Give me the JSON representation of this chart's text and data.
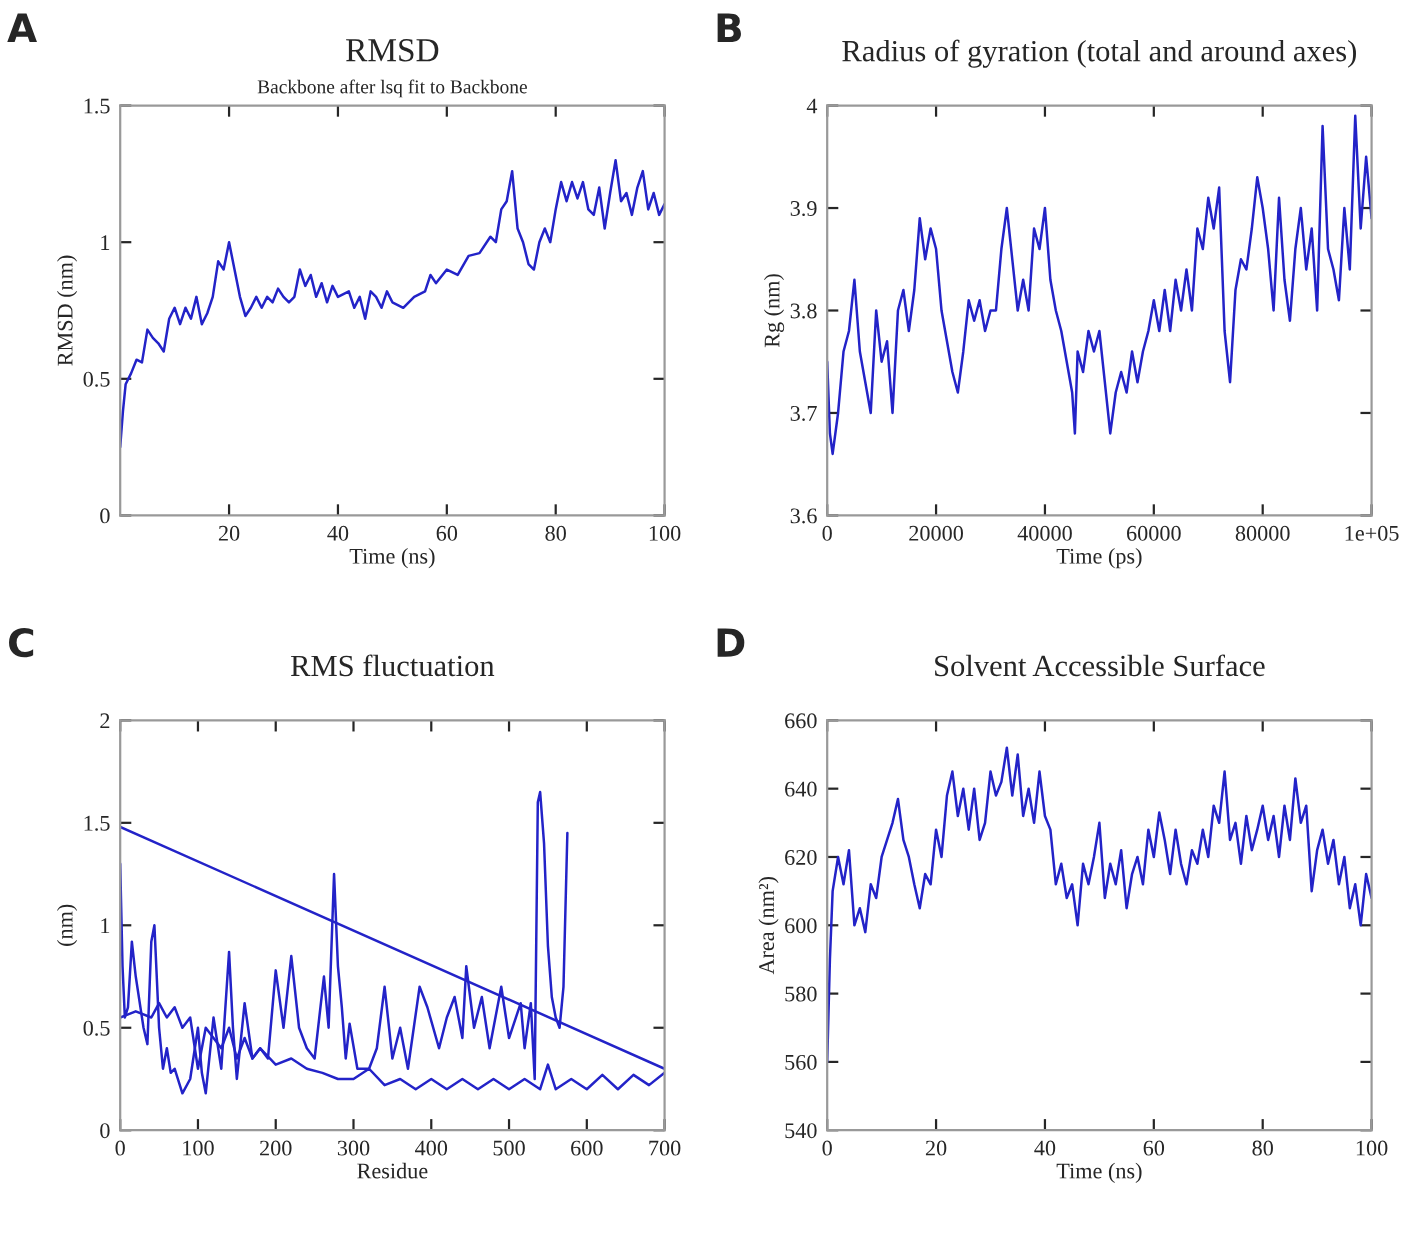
{
  "chart_data": [
    {
      "type": "line",
      "title": "RMSD",
      "subtitle": "Backbone after lsq fit to Backbone",
      "xlabel": "Time (ns)",
      "ylabel": "RMSD (nm)",
      "annotations": [
        "A"
      ],
      "xlim": [
        0,
        100
      ],
      "xticks": [
        20,
        40,
        60,
        80,
        100
      ],
      "ylim": [
        0,
        1.5
      ],
      "yticks": [
        0,
        0.5,
        1,
        1.5
      ],
      "grid": false,
      "series": [
        {
          "color": "#2323c8",
          "x": [
            0,
            0.5,
            1,
            2,
            3,
            4,
            5,
            6,
            7,
            8,
            9,
            10,
            11,
            12,
            13,
            14,
            15,
            16,
            17,
            18,
            19,
            20,
            21,
            22,
            23,
            24,
            25,
            26,
            27,
            28,
            29,
            30,
            31,
            32,
            33,
            34,
            35,
            36,
            37,
            38,
            39,
            40,
            42,
            43,
            44,
            45,
            46,
            47,
            48,
            49,
            50,
            52,
            54,
            56,
            57,
            58,
            60,
            62,
            64,
            66,
            68,
            69,
            70,
            71,
            72,
            73,
            74,
            75,
            76,
            77,
            78,
            79,
            80,
            81,
            82,
            83,
            84,
            85,
            86,
            87,
            88,
            89,
            90,
            91,
            92,
            93,
            94,
            95,
            96,
            97,
            98,
            99,
            100
          ],
          "values": [
            0.25,
            0.38,
            0.48,
            0.52,
            0.57,
            0.56,
            0.68,
            0.65,
            0.63,
            0.6,
            0.72,
            0.76,
            0.7,
            0.76,
            0.72,
            0.8,
            0.7,
            0.74,
            0.8,
            0.93,
            0.9,
            1.0,
            0.9,
            0.8,
            0.73,
            0.76,
            0.8,
            0.76,
            0.8,
            0.78,
            0.83,
            0.8,
            0.78,
            0.8,
            0.9,
            0.84,
            0.88,
            0.8,
            0.85,
            0.78,
            0.84,
            0.8,
            0.82,
            0.76,
            0.8,
            0.72,
            0.82,
            0.8,
            0.76,
            0.82,
            0.78,
            0.76,
            0.8,
            0.82,
            0.88,
            0.85,
            0.9,
            0.88,
            0.95,
            0.96,
            1.02,
            1.0,
            1.12,
            1.15,
            1.26,
            1.05,
            1.0,
            0.92,
            0.9,
            1.0,
            1.05,
            1.0,
            1.12,
            1.22,
            1.15,
            1.22,
            1.16,
            1.22,
            1.12,
            1.1,
            1.2,
            1.05,
            1.18,
            1.3,
            1.15,
            1.18,
            1.1,
            1.2,
            1.26,
            1.12,
            1.18,
            1.1,
            1.14
          ]
        }
      ]
    },
    {
      "type": "line",
      "title": "Radius of gyration (total and around axes)",
      "xlabel": "Time (ps)",
      "ylabel": "Rg (nm)",
      "annotations": [
        "B"
      ],
      "xlim": [
        0,
        100000
      ],
      "xticks": [
        0,
        20000,
        40000,
        60000,
        80000,
        {
          "value": 100000,
          "label": "1e+05"
        }
      ],
      "ylim": [
        3.6,
        4
      ],
      "yticks": [
        3.6,
        3.7,
        3.8,
        3.9,
        4
      ],
      "grid": false,
      "series": [
        {
          "color": "#2323c8",
          "x": [
            0,
            500,
            1000,
            2000,
            3000,
            4000,
            5000,
            6000,
            7000,
            8000,
            9000,
            10000,
            11000,
            12000,
            13000,
            14000,
            15000,
            16000,
            17000,
            18000,
            19000,
            20000,
            21000,
            22000,
            23000,
            24000,
            25000,
            26000,
            27000,
            28000,
            29000,
            30000,
            31000,
            32000,
            33000,
            34000,
            35000,
            36000,
            37000,
            38000,
            39000,
            40000,
            41000,
            42000,
            43000,
            44000,
            45000,
            45500,
            46000,
            47000,
            48000,
            49000,
            50000,
            51000,
            52000,
            53000,
            54000,
            55000,
            56000,
            57000,
            58000,
            59000,
            60000,
            61000,
            62000,
            63000,
            64000,
            65000,
            66000,
            67000,
            68000,
            69000,
            70000,
            71000,
            72000,
            73000,
            74000,
            75000,
            76000,
            77000,
            78000,
            79000,
            80000,
            81000,
            82000,
            83000,
            84000,
            85000,
            86000,
            87000,
            88000,
            89000,
            90000,
            91000,
            92000,
            93000,
            94000,
            95000,
            96000,
            97000,
            98000,
            99000,
            100000
          ],
          "values": [
            3.75,
            3.68,
            3.66,
            3.7,
            3.76,
            3.78,
            3.83,
            3.76,
            3.73,
            3.7,
            3.8,
            3.75,
            3.77,
            3.7,
            3.8,
            3.82,
            3.78,
            3.82,
            3.89,
            3.85,
            3.88,
            3.86,
            3.8,
            3.77,
            3.74,
            3.72,
            3.76,
            3.81,
            3.79,
            3.81,
            3.78,
            3.8,
            3.8,
            3.86,
            3.9,
            3.85,
            3.8,
            3.83,
            3.8,
            3.88,
            3.86,
            3.9,
            3.83,
            3.8,
            3.78,
            3.75,
            3.72,
            3.68,
            3.76,
            3.74,
            3.78,
            3.76,
            3.78,
            3.73,
            3.68,
            3.72,
            3.74,
            3.72,
            3.76,
            3.73,
            3.76,
            3.78,
            3.81,
            3.78,
            3.82,
            3.78,
            3.83,
            3.8,
            3.84,
            3.8,
            3.88,
            3.86,
            3.91,
            3.88,
            3.92,
            3.78,
            3.73,
            3.82,
            3.85,
            3.84,
            3.88,
            3.93,
            3.9,
            3.86,
            3.8,
            3.91,
            3.83,
            3.79,
            3.86,
            3.9,
            3.84,
            3.88,
            3.8,
            3.98,
            3.86,
            3.84,
            3.81,
            3.9,
            3.84,
            3.99,
            3.88,
            3.95,
            3.89
          ]
        }
      ]
    },
    {
      "type": "line",
      "title": "RMS fluctuation",
      "xlabel": "Residue",
      "ylabel": "(nm)",
      "annotations": [
        "C"
      ],
      "xlim": [
        0,
        700
      ],
      "xticks": [
        0,
        100,
        200,
        300,
        400,
        500,
        600,
        700
      ],
      "ylim": [
        0,
        2
      ],
      "yticks": [
        0,
        0.5,
        1,
        1.5,
        2
      ],
      "grid": false,
      "series": [
        {
          "color": "#2323c8",
          "x": [
            0,
            3,
            6,
            10,
            15,
            20,
            30,
            35,
            40,
            44,
            50,
            55,
            60,
            65,
            70,
            80,
            90,
            100,
            105,
            110,
            120,
            130,
            140,
            145,
            150,
            160,
            170,
            180,
            190,
            200,
            210,
            220,
            230,
            240,
            250,
            262,
            268,
            275,
            280,
            285,
            290,
            295,
            305,
            320,
            330,
            340,
            350,
            360,
            370,
            385,
            395,
            410,
            420,
            430,
            440,
            445,
            455,
            465,
            475,
            490,
            500,
            515,
            520,
            528,
            533,
            537,
            540,
            545,
            550,
            555,
            560,
            565,
            570,
            575
          ],
          "values": [
            1.3,
            0.8,
            0.55,
            0.6,
            0.92,
            0.75,
            0.5,
            0.42,
            0.92,
            1.0,
            0.5,
            0.3,
            0.4,
            0.28,
            0.3,
            0.18,
            0.25,
            0.5,
            0.28,
            0.18,
            0.55,
            0.3,
            0.87,
            0.5,
            0.25,
            0.62,
            0.35,
            0.4,
            0.35,
            0.78,
            0.5,
            0.85,
            0.5,
            0.4,
            0.35,
            0.75,
            0.5,
            1.25,
            0.8,
            0.6,
            0.35,
            0.52,
            0.3,
            0.3,
            0.4,
            0.7,
            0.35,
            0.5,
            0.3,
            0.7,
            0.6,
            0.4,
            0.55,
            0.65,
            0.45,
            0.8,
            0.5,
            0.65,
            0.4,
            0.7,
            0.45,
            0.62,
            0.4,
            0.62,
            0.25,
            1.6,
            1.65,
            1.4,
            0.9,
            0.65,
            0.55,
            0.5,
            0.7,
            1.45
          ]
        },
        {
          "color": "#2323c8",
          "x": [
            0,
            20,
            40,
            50,
            60,
            70,
            80,
            90,
            100,
            110,
            120,
            130,
            140,
            150,
            160,
            170,
            180,
            200,
            220,
            240,
            260,
            280,
            300,
            320,
            340,
            360,
            380,
            400,
            420,
            440,
            460,
            480,
            500,
            520,
            540,
            550,
            560,
            580,
            600,
            620,
            640,
            660,
            680,
            700
          ],
          "values": [
            0.55,
            0.58,
            0.55,
            0.62,
            0.55,
            0.6,
            0.5,
            0.55,
            0.3,
            0.5,
            0.45,
            0.4,
            0.5,
            0.35,
            0.45,
            0.35,
            0.4,
            0.32,
            0.35,
            0.3,
            0.28,
            0.25,
            0.25,
            0.3,
            0.22,
            0.25,
            0.2,
            0.25,
            0.2,
            0.25,
            0.2,
            0.25,
            0.2,
            0.25,
            0.2,
            0.32,
            0.2,
            0.25,
            0.2,
            0.27,
            0.2,
            0.27,
            0.22,
            0.28
          ]
        },
        {
          "color": "#2323c8",
          "x": [
            0,
            700
          ],
          "values": [
            1.48,
            0.3
          ]
        }
      ]
    },
    {
      "type": "line",
      "title": "Solvent Accessible Surface",
      "xlabel": "Time (ns)",
      "ylabel": "Area (nm²)",
      "annotations": [
        "D"
      ],
      "xlim": [
        0,
        100
      ],
      "xticks": [
        0,
        20,
        40,
        60,
        80,
        100
      ],
      "ylim": [
        540,
        660
      ],
      "yticks": [
        540,
        560,
        580,
        600,
        620,
        640,
        660
      ],
      "grid": false,
      "series": [
        {
          "color": "#2323c8",
          "x": [
            0,
            0.5,
            1,
            2,
            3,
            4,
            5,
            6,
            7,
            8,
            9,
            10,
            11,
            12,
            13,
            14,
            15,
            16,
            17,
            18,
            19,
            20,
            21,
            22,
            23,
            24,
            25,
            26,
            27,
            28,
            29,
            30,
            31,
            32,
            33,
            34,
            35,
            36,
            37,
            38,
            39,
            40,
            41,
            42,
            43,
            44,
            45,
            46,
            47,
            48,
            49,
            50,
            51,
            52,
            53,
            54,
            55,
            56,
            57,
            58,
            59,
            60,
            61,
            62,
            63,
            64,
            65,
            66,
            67,
            68,
            69,
            70,
            71,
            72,
            73,
            74,
            75,
            76,
            77,
            78,
            79,
            80,
            81,
            82,
            83,
            84,
            85,
            86,
            87,
            88,
            89,
            90,
            91,
            92,
            93,
            94,
            95,
            96,
            97,
            98,
            99,
            100
          ],
          "values": [
            560,
            590,
            610,
            620,
            612,
            622,
            600,
            605,
            598,
            612,
            608,
            620,
            625,
            630,
            637,
            625,
            620,
            612,
            605,
            615,
            612,
            628,
            620,
            638,
            645,
            632,
            640,
            628,
            640,
            625,
            630,
            645,
            638,
            642,
            652,
            638,
            650,
            632,
            640,
            630,
            645,
            632,
            628,
            612,
            618,
            608,
            612,
            600,
            618,
            612,
            620,
            630,
            608,
            618,
            612,
            622,
            605,
            615,
            620,
            612,
            628,
            620,
            633,
            625,
            615,
            628,
            618,
            612,
            622,
            618,
            628,
            620,
            635,
            630,
            645,
            625,
            630,
            618,
            632,
            622,
            628,
            635,
            625,
            632,
            620,
            635,
            625,
            643,
            630,
            635,
            610,
            622,
            628,
            618,
            625,
            612,
            620,
            605,
            612,
            600,
            615,
            608
          ]
        }
      ]
    }
  ]
}
